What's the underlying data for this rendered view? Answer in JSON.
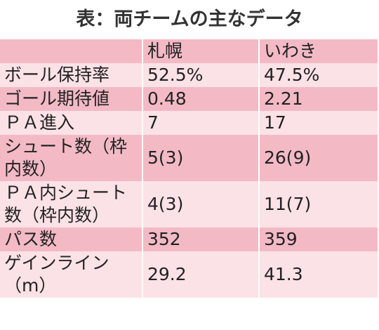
{
  "title": "表：両チームの主なデータ",
  "table": {
    "header": [
      "",
      "札幌",
      "いわき"
    ],
    "rows": [
      [
        "ボール保持率",
        "52.5%",
        "47.5%"
      ],
      [
        "ゴール期待値",
        "0.48",
        "2.21"
      ],
      [
        "ＰＡ進入",
        "7",
        "17"
      ],
      [
        "シュート数（枠内数）",
        "5(3)",
        "26(9)"
      ],
      [
        "ＰＡ内シュート数（枠内数）",
        "4(3)",
        "11(7)"
      ],
      [
        "パス数",
        "352",
        "359"
      ],
      [
        "ゲインライン（m）",
        "29.2",
        "41.3"
      ]
    ]
  }
}
